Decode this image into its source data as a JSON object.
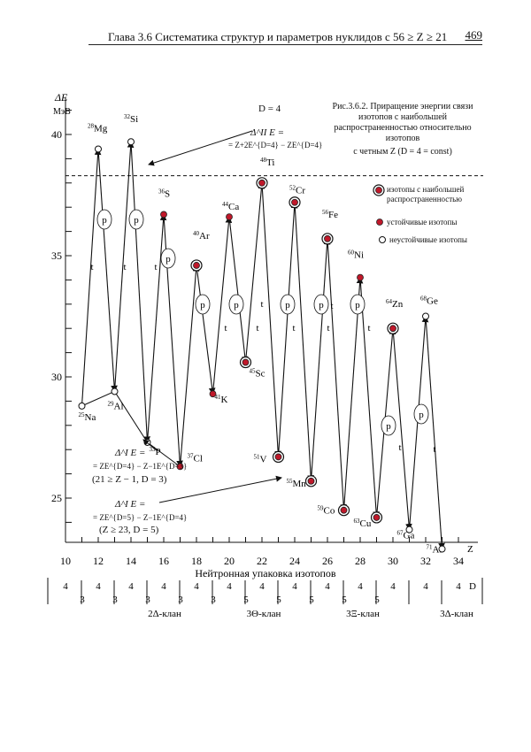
{
  "header": {
    "chapter_title": "Глава 3.6 Систематика структур и параметров нуклидов с 56 ≥ Z ≥ 21",
    "page_number": "469"
  },
  "caption": {
    "lines": [
      "Рис.3.6.2. Приращение энергии связи",
      "изотопов с наибольшей",
      "распространенностью относительно",
      "изотопов",
      "с четным Z (D = 4 = const)"
    ]
  },
  "legend": {
    "most_abundant": "изотопы с наибольшей распространенностью",
    "stable": "устойчивые изотопы",
    "unstable": "неустойчивые изотопы"
  },
  "annotations": {
    "d4": "D = 4",
    "delta_IIE_1": "Δ^II E =",
    "delta_IIE_2": "= Z+2E^{D=4} − ZE^{D=4}",
    "delta_IE_1": "Δ^I E =",
    "delta_IE_2": "= ZE^{D=4} − Z−1E^{D=3}",
    "delta_IE_range": "(21 ≥ Z − 1, D = 3)",
    "delta_IE2_1": "Δ^I E =",
    "delta_IE2_2": "= ZE^{D=5} − Z−1E^{D=4}",
    "delta_IE2_range": "(Z ≥ 23, D = 5)"
  },
  "chart_data": {
    "type": "line",
    "ylabel": "ΔE",
    "yunit": "МэВ",
    "xlabel": "Нейтронная упаковка изотопов",
    "xaxis_letter": "Z",
    "ylim": [
      22.3,
      43.5
    ],
    "xlim": [
      10,
      34
    ],
    "y_ticks": [
      25,
      30,
      35,
      40
    ],
    "x_ticks": [
      10,
      12,
      14,
      16,
      18,
      20,
      22,
      24,
      26,
      28,
      30,
      32,
      34
    ],
    "dashed_level": 38.3,
    "points": [
      {
        "label": "25Na",
        "x": 11,
        "y": 28.8,
        "type": "unstable"
      },
      {
        "label": "28Mg",
        "x": 12,
        "y": 39.4,
        "type": "unstable"
      },
      {
        "label": "29Al",
        "x": 13,
        "y": 29.4,
        "type": "unstable"
      },
      {
        "label": "32Si",
        "x": 14,
        "y": 39.7,
        "type": "unstable"
      },
      {
        "label": "33P",
        "x": 15,
        "y": 27.3,
        "type": "unstable"
      },
      {
        "label": "36S",
        "x": 16,
        "y": 36.7,
        "type": "stable"
      },
      {
        "label": "37Cl",
        "x": 17,
        "y": 26.3,
        "type": "stable"
      },
      {
        "label": "40Ar",
        "x": 18,
        "y": 34.6,
        "type": "abundant"
      },
      {
        "label": "41K",
        "x": 19,
        "y": 29.3,
        "type": "stable"
      },
      {
        "label": "44Ca",
        "x": 20,
        "y": 36.6,
        "type": "stable"
      },
      {
        "label": "45Sc",
        "x": 21,
        "y": 30.6,
        "type": "abundant"
      },
      {
        "label": "48Ti",
        "x": 22,
        "y": 38.0,
        "type": "abundant"
      },
      {
        "label": "51V",
        "x": 23,
        "y": 26.7,
        "type": "abundant"
      },
      {
        "label": "52Cr",
        "x": 24,
        "y": 37.2,
        "type": "abundant"
      },
      {
        "label": "55Mn",
        "x": 25,
        "y": 25.7,
        "type": "abundant"
      },
      {
        "label": "56Fe",
        "x": 26,
        "y": 35.7,
        "type": "abundant"
      },
      {
        "label": "59Co",
        "x": 27,
        "y": 24.5,
        "type": "abundant"
      },
      {
        "label": "60Ni",
        "x": 28,
        "y": 34.1,
        "type": "stable"
      },
      {
        "label": "63Cu",
        "x": 29,
        "y": 24.2,
        "type": "abundant"
      },
      {
        "label": "64Zn",
        "x": 30,
        "y": 32.0,
        "type": "abundant"
      },
      {
        "label": "67Ga",
        "x": 31,
        "y": 23.7,
        "type": "unstable"
      },
      {
        "label": "68Ge",
        "x": 32,
        "y": 32.5,
        "type": "unstable"
      },
      {
        "label": "71As",
        "x": 33,
        "y": 22.9,
        "type": "unstable"
      }
    ],
    "step_labels": [
      "p",
      "p",
      "p",
      "t",
      "t",
      "t",
      "p",
      "p",
      "t",
      "t",
      "t",
      "p",
      "p",
      "p",
      "t",
      "t",
      "t",
      "t",
      "p",
      "p",
      "t",
      "t",
      "t",
      "t",
      "p",
      "p",
      "t",
      "t"
    ],
    "d_values_top": [
      "4",
      "4",
      "4",
      "4",
      "4",
      "4",
      "4",
      "4",
      "4",
      "4",
      "4",
      "4",
      "4"
    ],
    "d_values_bottom": [
      "3",
      "3",
      "3",
      "3",
      "3",
      "5",
      "5",
      "5",
      "5",
      "5"
    ],
    "d_label": "D",
    "clans": [
      "2Δ-клан",
      "3Θ-клан",
      "3Ξ-клан",
      "3Δ-клан"
    ]
  }
}
